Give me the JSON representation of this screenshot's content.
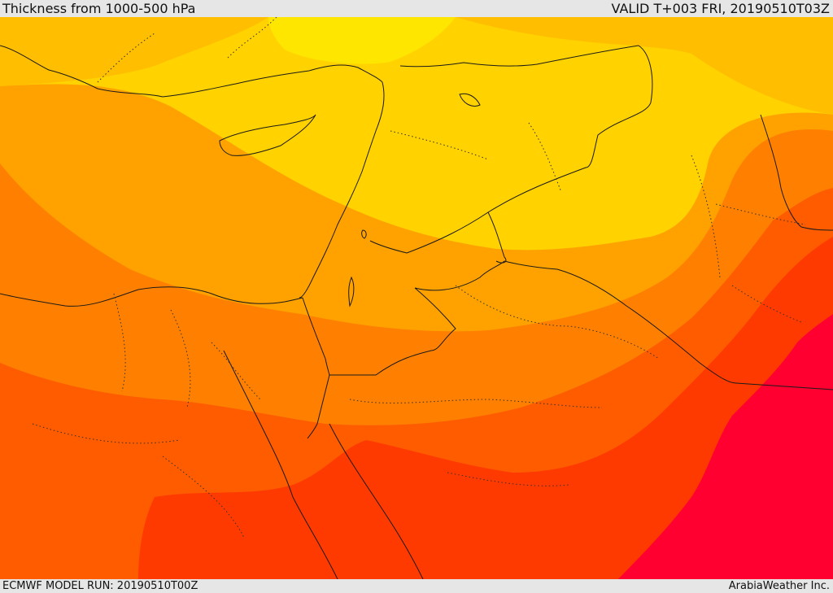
{
  "header": {
    "title": "Thickness from 1000-500 hPa",
    "valid": "VALID T+003 FRI, 20190510T03Z"
  },
  "footer": {
    "model_run": "ECMWF MODEL RUN: 20190510T00Z",
    "brand": "ArabiaWeather Inc."
  },
  "map": {
    "region": "Eastern Mediterranean and Middle East",
    "palette": {
      "band_yellow": "#ffe600",
      "band_gold": "#ffd200",
      "band_amber": "#ffbe00",
      "band_orange": "#ffa200",
      "band_dark_orange": "#ff8000",
      "band_red_orange": "#ff5c00",
      "band_red": "#ff3a00",
      "band_crimson": "#ff0030",
      "coastline": "#1a1a1a",
      "internal_border": "#333333"
    }
  }
}
